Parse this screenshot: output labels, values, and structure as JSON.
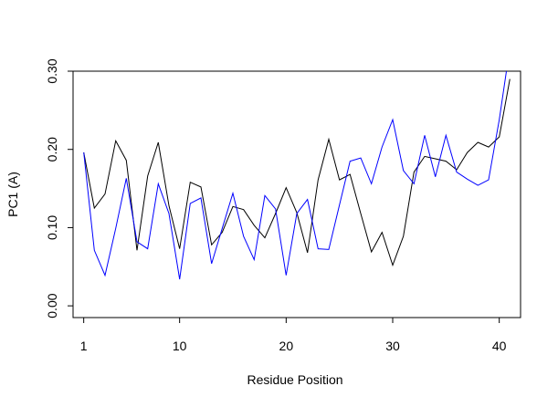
{
  "chart_data": {
    "type": "line",
    "title": "",
    "xlabel": "Residue Position",
    "ylabel": "PC1 (A)",
    "xlim": [
      0,
      42
    ],
    "ylim": [
      -0.015,
      0.3
    ],
    "x_ticks": [
      1,
      10,
      20,
      30,
      40
    ],
    "y_ticks": [
      0.0,
      0.1,
      0.2,
      0.3
    ],
    "y_tick_labels": [
      "0.00",
      "0.10",
      "0.20",
      "0.30"
    ],
    "grid": false,
    "x": [
      1,
      2,
      3,
      4,
      5,
      6,
      7,
      8,
      9,
      10,
      11,
      12,
      13,
      14,
      15,
      16,
      17,
      18,
      19,
      20,
      21,
      22,
      23,
      24,
      25,
      26,
      27,
      28,
      29,
      30,
      31,
      32,
      33,
      34,
      35,
      36,
      37,
      38,
      39,
      40,
      41
    ],
    "series": [
      {
        "color": "#000000",
        "values": [
          0.196,
          0.125,
          0.143,
          0.211,
          0.186,
          0.071,
          0.166,
          0.209,
          0.128,
          0.073,
          0.158,
          0.152,
          0.078,
          0.094,
          0.127,
          0.123,
          0.103,
          0.087,
          0.118,
          0.151,
          0.119,
          0.068,
          0.161,
          0.213,
          0.161,
          0.168,
          0.118,
          0.069,
          0.094,
          0.052,
          0.089,
          0.171,
          0.191,
          0.188,
          0.185,
          0.174,
          0.196,
          0.209,
          0.203,
          0.216,
          0.29
        ]
      },
      {
        "color": "#0000ff",
        "values": [
          0.196,
          0.071,
          0.039,
          0.099,
          0.163,
          0.082,
          0.073,
          0.156,
          0.118,
          0.034,
          0.131,
          0.138,
          0.054,
          0.099,
          0.144,
          0.089,
          0.059,
          0.141,
          0.124,
          0.039,
          0.118,
          0.136,
          0.073,
          0.072,
          0.129,
          0.185,
          0.189,
          0.156,
          0.203,
          0.238,
          0.173,
          0.156,
          0.218,
          0.165,
          0.218,
          0.171,
          0.162,
          0.154,
          0.161,
          0.238,
          0.33
        ]
      }
    ]
  }
}
